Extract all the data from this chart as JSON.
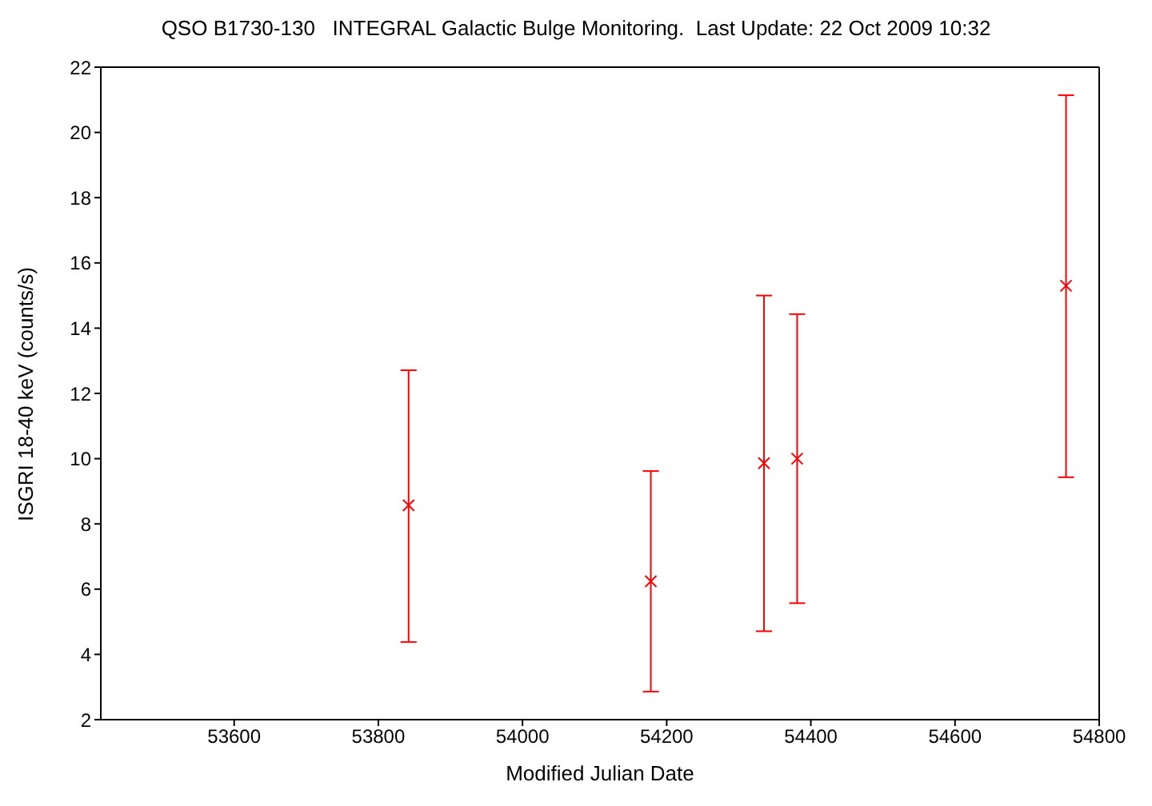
{
  "chart_data": {
    "type": "scatter",
    "title": "QSO B1730-130   INTEGRAL Galactic Bulge Monitoring.  Last Update: 22 Oct 2009 10:32",
    "xlabel": "Modified Julian Date",
    "ylabel": "ISGRI 18-40 keV (counts/s)",
    "x": [
      53842,
      54178,
      54335,
      54381,
      54754
    ],
    "values": [
      8.57,
      6.24,
      9.86,
      10.0,
      15.3
    ],
    "errors": [
      [
        4.38,
        12.71
      ],
      [
        2.86,
        9.62
      ],
      [
        4.71,
        15.0
      ],
      [
        5.57,
        14.43
      ],
      [
        9.43,
        21.14
      ]
    ],
    "color": "#ff0000",
    "marker": "cross",
    "legend": false,
    "xlim": [
      53415,
      54800
    ],
    "xticks": [
      53600,
      53800,
      54000,
      54200,
      54400,
      54600,
      54800
    ],
    "ylim": [
      2,
      22
    ],
    "yticks": [
      2,
      4,
      6,
      8,
      10,
      12,
      14,
      16,
      18,
      20,
      22
    ]
  }
}
